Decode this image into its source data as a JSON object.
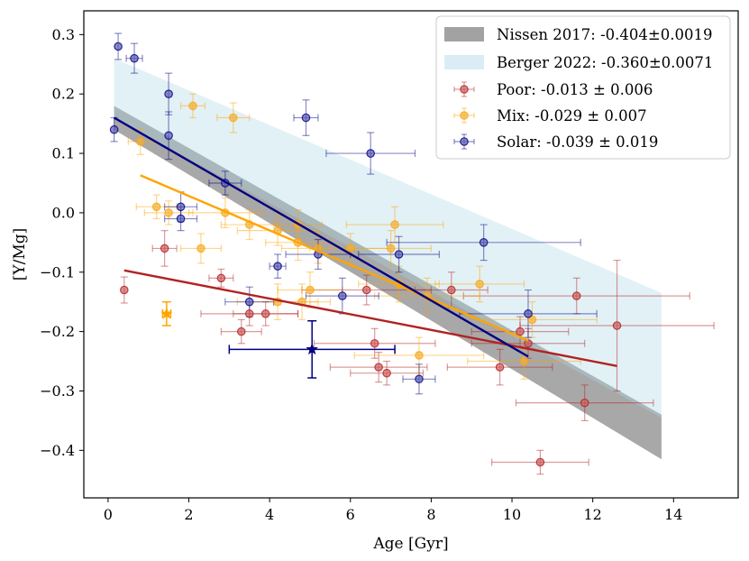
{
  "chart_data": {
    "type": "scatter",
    "xlabel": "Age [Gyr]",
    "ylabel": "[Y/Mg]",
    "xlim": [
      -0.6,
      15.6
    ],
    "ylim": [
      -0.48,
      0.34
    ],
    "x_ticks": [
      0,
      2,
      4,
      6,
      8,
      10,
      12,
      14
    ],
    "x_tick_labels": [
      "0",
      "2",
      "4",
      "6",
      "8",
      "10",
      "12",
      "14"
    ],
    "y_ticks": [
      0.3,
      0.2,
      0.1,
      0.0,
      -0.1,
      -0.2,
      -0.3,
      -0.4
    ],
    "y_tick_labels": [
      "0.3",
      "0.2",
      "0.1",
      "0.0",
      "−0.1",
      "−0.2",
      "−0.3",
      "−0.4"
    ],
    "legend_position": "top-right",
    "bands": [
      {
        "name": "Nissen 2017",
        "label": "Nissen 2017: -0.404±0.0019",
        "color": "#7a7a7a",
        "fill_opacity": 0.65,
        "x": [
          0.15,
          13.7
        ],
        "upper": [
          0.18,
          -0.34
        ],
        "lower": [
          0.14,
          -0.415
        ]
      },
      {
        "name": "Berger 2022",
        "label": "Berger 2022: -0.360±0.0071",
        "color": "#add8e6",
        "fill_opacity": 0.35,
        "x": [
          0.15,
          13.7
        ],
        "upper": [
          0.26,
          -0.135
        ],
        "lower": [
          0.16,
          -0.345
        ]
      }
    ],
    "series": [
      {
        "name": "Poor",
        "label": "Poor: -0.013 ± 0.006",
        "color": "#b22222",
        "fill": "#cd5c5c",
        "fit": {
          "x": [
            0.4,
            12.6
          ],
          "y": [
            -0.097,
            -0.258
          ]
        },
        "points": [
          {
            "x": 0.4,
            "y": -0.13,
            "xerr": 0,
            "yerr": 0.022
          },
          {
            "x": 1.4,
            "y": -0.06,
            "xerr": 0.3,
            "yerr": 0.03
          },
          {
            "x": 2.8,
            "y": -0.11,
            "xerr": 0.3,
            "yerr": 0.015
          },
          {
            "x": 3.3,
            "y": -0.2,
            "xerr": 0.5,
            "yerr": 0.02
          },
          {
            "x": 3.5,
            "y": -0.17,
            "xerr": 1.2,
            "yerr": 0.02
          },
          {
            "x": 3.9,
            "y": -0.17,
            "xerr": 0.8,
            "yerr": 0.02
          },
          {
            "x": 6.4,
            "y": -0.13,
            "xerr": 1.6,
            "yerr": 0.025
          },
          {
            "x": 6.6,
            "y": -0.22,
            "xerr": 1.5,
            "yerr": 0.025
          },
          {
            "x": 6.7,
            "y": -0.26,
            "xerr": 1.2,
            "yerr": 0.025
          },
          {
            "x": 6.9,
            "y": -0.27,
            "xerr": 0.9,
            "yerr": 0.02
          },
          {
            "x": 8.5,
            "y": -0.13,
            "xerr": 0.9,
            "yerr": 0.03
          },
          {
            "x": 9.7,
            "y": -0.26,
            "xerr": 1.3,
            "yerr": 0.03
          },
          {
            "x": 10.2,
            "y": -0.2,
            "xerr": 1.2,
            "yerr": 0.025
          },
          {
            "x": 10.4,
            "y": -0.22,
            "xerr": 1.4,
            "yerr": 0.025
          },
          {
            "x": 10.7,
            "y": -0.42,
            "xerr": 1.2,
            "yerr": 0.02
          },
          {
            "x": 11.6,
            "y": -0.14,
            "xerr": 2.8,
            "yerr": 0.03
          },
          {
            "x": 11.8,
            "y": -0.32,
            "xerr": 1.7,
            "yerr": 0.03
          },
          {
            "x": 12.6,
            "y": -0.19,
            "xerr": 2.4,
            "yerr": 0.11
          }
        ]
      },
      {
        "name": "Mix",
        "label": "Mix: -0.029 ± 0.007",
        "color": "#ffa500",
        "fill": "#f0b040",
        "fit": {
          "x": [
            0.8,
            10.4
          ],
          "y": [
            0.063,
            -0.215
          ]
        },
        "points": [
          {
            "x": 0.8,
            "y": 0.12,
            "xerr": 0.3,
            "yerr": 0.022
          },
          {
            "x": 1.2,
            "y": 0.01,
            "xerr": 0.5,
            "yerr": 0.02
          },
          {
            "x": 1.5,
            "y": 0.0,
            "xerr": 0.6,
            "yerr": 0.02
          },
          {
            "x": 2.1,
            "y": 0.18,
            "xerr": 0.3,
            "yerr": 0.02
          },
          {
            "x": 2.3,
            "y": -0.06,
            "xerr": 0.5,
            "yerr": 0.025
          },
          {
            "x": 2.9,
            "y": 0.0,
            "xerr": 0.9,
            "yerr": 0.025
          },
          {
            "x": 3.1,
            "y": 0.16,
            "xerr": 0.4,
            "yerr": 0.025
          },
          {
            "x": 3.5,
            "y": -0.02,
            "xerr": 0.7,
            "yerr": 0.025
          },
          {
            "x": 4.2,
            "y": -0.03,
            "xerr": 1.0,
            "yerr": 0.025
          },
          {
            "x": 4.2,
            "y": -0.15,
            "xerr": 1.0,
            "yerr": 0.03
          },
          {
            "x": 4.7,
            "y": -0.05,
            "xerr": 0.8,
            "yerr": 0.03
          },
          {
            "x": 4.7,
            "y": -0.02,
            "xerr": 0.6,
            "yerr": 0.025
          },
          {
            "x": 4.8,
            "y": -0.15,
            "xerr": 0.7,
            "yerr": 0.03
          },
          {
            "x": 5.0,
            "y": -0.13,
            "xerr": 0.8,
            "yerr": 0.03
          },
          {
            "x": 5.2,
            "y": -0.06,
            "xerr": 0.9,
            "yerr": 0.025
          },
          {
            "x": 6.0,
            "y": -0.06,
            "xerr": 1.0,
            "yerr": 0.025
          },
          {
            "x": 7.0,
            "y": -0.06,
            "xerr": 1.0,
            "yerr": 0.03
          },
          {
            "x": 7.1,
            "y": -0.02,
            "xerr": 1.2,
            "yerr": 0.03
          },
          {
            "x": 7.2,
            "y": -0.12,
            "xerr": 1.0,
            "yerr": 0.03
          },
          {
            "x": 7.7,
            "y": -0.24,
            "xerr": 1.6,
            "yerr": 0.03
          },
          {
            "x": 7.9,
            "y": -0.14,
            "xerr": 1.3,
            "yerr": 0.03
          },
          {
            "x": 9.2,
            "y": -0.12,
            "xerr": 1.1,
            "yerr": 0.03
          },
          {
            "x": 10.3,
            "y": -0.25,
            "xerr": 1.4,
            "yerr": 0.03
          },
          {
            "x": 10.5,
            "y": -0.18,
            "xerr": 1.6,
            "yerr": 0.03
          }
        ]
      },
      {
        "name": "Solar",
        "label": "Solar: -0.039 ± 0.019",
        "color": "#000080",
        "fill": "#5a5ab4",
        "fit": {
          "x": [
            0.15,
            10.4
          ],
          "y": [
            0.16,
            -0.242
          ]
        },
        "points": [
          {
            "x": 0.15,
            "y": 0.14,
            "xerr": 0,
            "yerr": 0.02
          },
          {
            "x": 0.25,
            "y": 0.28,
            "xerr": 0,
            "yerr": 0.022
          },
          {
            "x": 0.65,
            "y": 0.26,
            "xerr": 0.2,
            "yerr": 0.025
          },
          {
            "x": 1.5,
            "y": 0.2,
            "xerr": 0,
            "yerr": 0.035
          },
          {
            "x": 1.5,
            "y": 0.13,
            "xerr": 0,
            "yerr": 0.04
          },
          {
            "x": 1.8,
            "y": 0.01,
            "xerr": 0.4,
            "yerr": 0.025
          },
          {
            "x": 1.8,
            "y": -0.01,
            "xerr": 0.4,
            "yerr": 0.02
          },
          {
            "x": 2.9,
            "y": 0.05,
            "xerr": 0.4,
            "yerr": 0.02
          },
          {
            "x": 3.5,
            "y": -0.15,
            "xerr": 0.6,
            "yerr": 0.025
          },
          {
            "x": 4.2,
            "y": -0.09,
            "xerr": 0.2,
            "yerr": 0.02
          },
          {
            "x": 4.9,
            "y": 0.16,
            "xerr": 0.3,
            "yerr": 0.03
          },
          {
            "x": 5.2,
            "y": -0.07,
            "xerr": 0.8,
            "yerr": 0.025
          },
          {
            "x": 5.8,
            "y": -0.14,
            "xerr": 0.9,
            "yerr": 0.03
          },
          {
            "x": 6.5,
            "y": 0.1,
            "xerr": 1.1,
            "yerr": 0.035
          },
          {
            "x": 7.2,
            "y": -0.07,
            "xerr": 1.0,
            "yerr": 0.03
          },
          {
            "x": 7.7,
            "y": -0.28,
            "xerr": 0.4,
            "yerr": 0.025
          },
          {
            "x": 9.3,
            "y": -0.05,
            "xerr": 2.4,
            "yerr": 0.03
          },
          {
            "x": 10.4,
            "y": -0.17,
            "xerr": 1.7,
            "yerr": 0.04
          }
        ]
      }
    ],
    "highlights": [
      {
        "name": "orange-star",
        "x": 1.45,
        "y": -0.17,
        "xerr": 0.1,
        "yerr": 0.02,
        "color": "#ffa500",
        "marker": "star"
      },
      {
        "name": "navy-star",
        "x": 5.05,
        "y": -0.23,
        "xerr": 2.05,
        "yerr": 0.048,
        "color": "#000080",
        "marker": "star"
      }
    ]
  }
}
